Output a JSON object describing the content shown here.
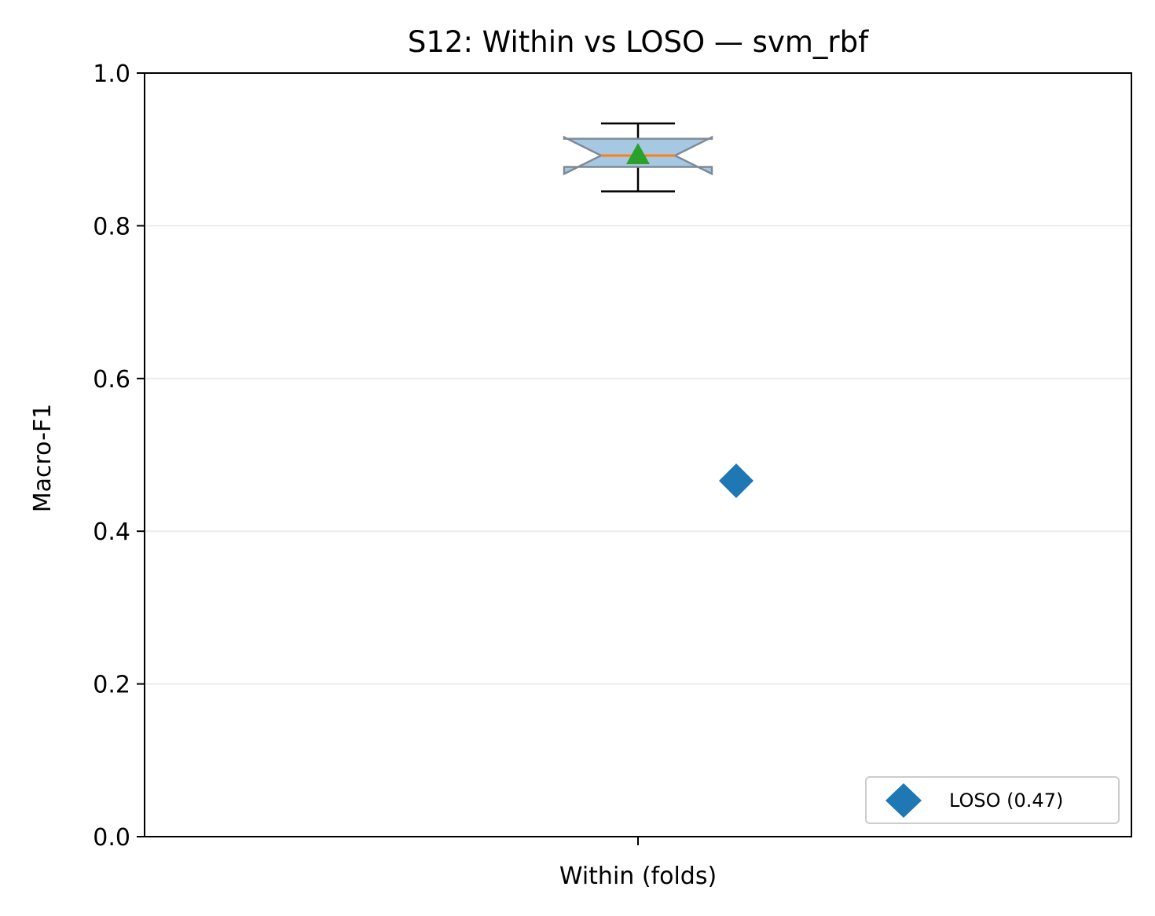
{
  "chart_data": {
    "type": "box",
    "title": "S12: Within vs LOSO — svm_rbf",
    "xlabel": "",
    "ylabel": "Macro-F1",
    "ylim": [
      0.0,
      1.0
    ],
    "y_ticks": [
      "0.0",
      "0.2",
      "0.4",
      "0.6",
      "0.8",
      "1.0"
    ],
    "y_tick_values": [
      0.0,
      0.2,
      0.4,
      0.6,
      0.8,
      1.0
    ],
    "categories": [
      "Within (folds)"
    ],
    "grid": "y",
    "box": {
      "category": "Within (folds)",
      "whisker_low": 0.845,
      "q1": 0.877,
      "median": 0.892,
      "q3": 0.914,
      "whisker_high": 0.934,
      "notch_low": 0.868,
      "notch_high": 0.916,
      "mean": 0.893,
      "fill_color": "#a6c8e2",
      "edge_color": "#7f8a96",
      "median_color": "#ff7f0e",
      "mean_color": "#2ca02c"
    },
    "loso": {
      "name": "LOSO (0.47)",
      "value": 0.466,
      "marker": "diamond",
      "color": "#1f77b4"
    },
    "legend_position": "lower-right"
  }
}
